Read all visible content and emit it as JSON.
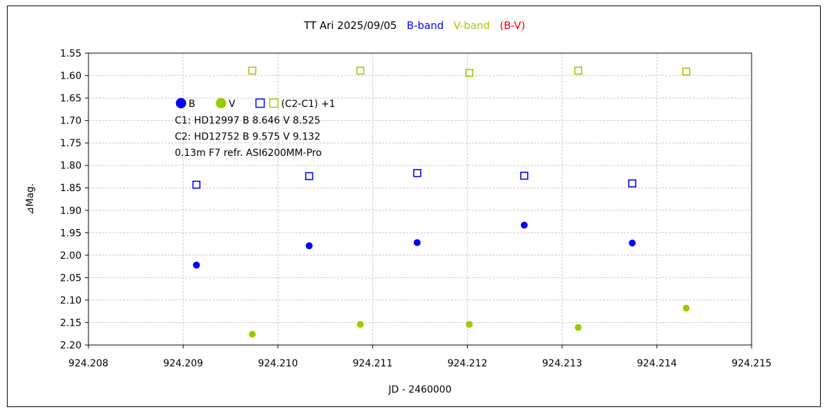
{
  "chart_data": {
    "type": "scatter",
    "title_parts": [
      {
        "text": "TT Ari   2025/09/05",
        "color": "#000000"
      },
      {
        "text": "B-band",
        "color": "#0000ff"
      },
      {
        "text": "V-band",
        "color": "#99cc00"
      },
      {
        "text": "(B-V)",
        "color": "#ff0000"
      }
    ],
    "xlabel": "JD - 2460000",
    "ylabel": "⊿Mag.",
    "xlim": [
      924.208,
      924.215
    ],
    "ylim": [
      2.2,
      1.55
    ],
    "y_inverted": true,
    "xticks": [
      "924.208",
      "924.209",
      "924.210",
      "924.211",
      "924.212",
      "924.213",
      "924.214",
      "924.215"
    ],
    "yticks": [
      "1.55",
      "1.60",
      "1.65",
      "1.70",
      "1.75",
      "1.80",
      "1.85",
      "1.90",
      "1.95",
      "2.00",
      "2.05",
      "2.10",
      "2.15",
      "2.20"
    ],
    "grid": true,
    "legend": {
      "items": [
        {
          "label": "B",
          "color": "#0000ff",
          "marker": "circle"
        },
        {
          "label": "V",
          "color": "#99cc00",
          "marker": "circle"
        },
        {
          "label": "(C2-C1) +1",
          "marker": "squares"
        }
      ],
      "lines": [
        "C1: HD12997  B 8.646  V 8.525",
        "C2: HD12752  B 9.575  V 9.132",
        "0.13m  F7 refr. ASI6200MM-Pro"
      ]
    },
    "series": [
      {
        "name": "B",
        "marker": "circle",
        "color": "#0000ff",
        "x": [
          924.20914,
          924.21033,
          924.21147,
          924.2126,
          924.21374
        ],
        "y": [
          2.022,
          1.979,
          1.972,
          1.933,
          1.973
        ]
      },
      {
        "name": "V",
        "marker": "circle",
        "color": "#99cc00",
        "x": [
          924.20973,
          924.21087,
          924.21202,
          924.21317,
          924.21431
        ],
        "y": [
          2.176,
          2.154,
          2.154,
          2.161,
          2.118
        ]
      },
      {
        "name": "(C2-C1) +1",
        "marker": "square",
        "color": "#0000ff",
        "x": [
          924.20914,
          924.21033,
          924.21147,
          924.2126,
          924.21374
        ],
        "y": [
          1.843,
          1.824,
          1.817,
          1.823,
          1.84
        ]
      },
      {
        "name": "(C2-C1) +1",
        "marker": "square",
        "color": "#99cc00",
        "x": [
          924.20973,
          924.21087,
          924.21202,
          924.21317,
          924.21431
        ],
        "y": [
          1.589,
          1.589,
          1.594,
          1.589,
          1.591
        ]
      }
    ]
  }
}
